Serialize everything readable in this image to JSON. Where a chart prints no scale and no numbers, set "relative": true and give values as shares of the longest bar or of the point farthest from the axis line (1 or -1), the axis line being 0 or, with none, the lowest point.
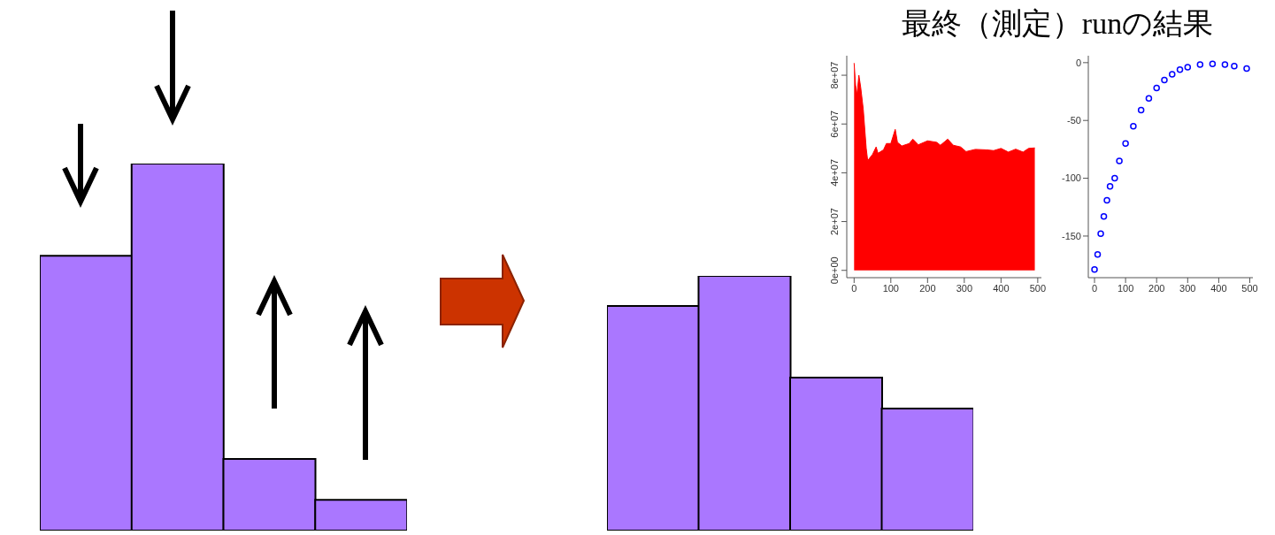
{
  "chart_data": [
    {
      "type": "bar",
      "relative": true,
      "categories": [
        null,
        null,
        null,
        null
      ],
      "values": [
        0.749,
        1,
        0.195,
        0.084
      ],
      "color": "#aa77ff"
    },
    {
      "type": "bar",
      "relative": true,
      "categories": [
        null,
        null,
        null,
        null
      ],
      "values": [
        0.882,
        1,
        0.601,
        0.479
      ],
      "color": "#aa77ff"
    },
    {
      "type": "area",
      "title": "最終（測定）runの結果",
      "color": "#ff0000",
      "x": [
        0,
        4,
        8,
        13,
        18,
        25,
        33,
        37,
        50,
        60,
        65,
        80,
        88,
        100,
        112,
        118,
        130,
        150,
        160,
        175,
        200,
        225,
        235,
        255,
        270,
        290,
        305,
        330,
        360,
        380,
        400,
        420,
        440,
        460,
        475,
        492
      ],
      "values": [
        85000000,
        76000000,
        72000000,
        80000000,
        75000000,
        66000000,
        50000000,
        45000000,
        47500000,
        50600000,
        48000000,
        49400000,
        52000000,
        52000000,
        57800000,
        52500000,
        51000000,
        52000000,
        53800000,
        51500000,
        53100000,
        52500000,
        51300000,
        53800000,
        51300000,
        50600000,
        48700000,
        49600000,
        49400000,
        49100000,
        50000000,
        48500000,
        49700000,
        48500000,
        50000000,
        50200000
      ],
      "xlim": [
        -20,
        510
      ],
      "ylim": [
        -3000000,
        88000000
      ],
      "xticks": [
        0,
        100,
        200,
        300,
        400,
        500
      ],
      "yticks": [
        {
          "value": 0,
          "label": "0e+00"
        },
        {
          "value": 20000000,
          "label": "2e+07"
        },
        {
          "value": 40000000,
          "label": "4e+07"
        },
        {
          "value": 60000000,
          "label": "6e+07"
        },
        {
          "value": 80000000,
          "label": "8e+07"
        }
      ]
    },
    {
      "type": "scatter",
      "color": "#0000ff",
      "marker": "circle",
      "x": [
        0,
        10,
        20,
        30,
        40,
        50,
        65,
        80,
        100,
        125,
        150,
        175,
        200,
        225,
        250,
        275,
        300,
        340,
        380,
        420,
        450,
        490
      ],
      "values": [
        -179,
        -166,
        -148,
        -133,
        -119,
        -107,
        -100,
        -85,
        -70,
        -55,
        -41,
        -31,
        -22,
        -15,
        -10,
        -6,
        -4,
        -1.6,
        -1,
        -1.6,
        -3,
        -5
      ],
      "xlim": [
        -20,
        510
      ],
      "ylim": [
        -186,
        6
      ],
      "xticks": [
        0,
        100,
        200,
        300,
        400,
        500
      ],
      "yticks": [
        0,
        -50,
        -100,
        -150
      ]
    }
  ]
}
